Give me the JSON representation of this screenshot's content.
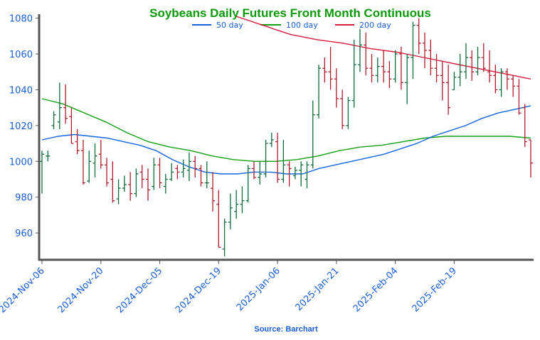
{
  "chart_data": {
    "type": "ohlc",
    "title": "Soybeans Daily Futures Front Month Continuous",
    "source": "Source: Barchart",
    "ylim": [
      945,
      1083
    ],
    "yticks": [
      960,
      980,
      1000,
      1020,
      1040,
      1060,
      1080
    ],
    "x_tick_labels": [
      "2024-Nov-06",
      "2024-Nov-20",
      "2024-Dec-05",
      "2024-Dec-19",
      "2025-Jan-06",
      "2025-Jan-21",
      "2025-Feb-04",
      "2025-Feb-19"
    ],
    "x_tick_index": [
      0,
      10,
      20,
      30,
      40,
      50,
      60,
      70
    ],
    "legend": [
      {
        "name": "50 day",
        "color": "#1565e0"
      },
      {
        "name": "100 day",
        "color": "#13a013"
      },
      {
        "name": "200 day",
        "color": "#d81b3c"
      }
    ],
    "up_color": "#0e6b3a",
    "down_color": "#b01c2e",
    "bars": [
      [
        1000,
        1006,
        982,
        1004
      ],
      [
        1003,
        1006,
        1000,
        1003
      ],
      [
        1020,
        1028,
        1018,
        1026
      ],
      [
        1022,
        1044,
        1018,
        1030
      ],
      [
        1030,
        1043,
        1021,
        1024
      ],
      [
        1025,
        1030,
        1010,
        1010
      ],
      [
        1011,
        1018,
        1004,
        1006
      ],
      [
        1006,
        1012,
        987,
        988
      ],
      [
        989,
        1006,
        988,
        1000
      ],
      [
        999,
        1010,
        991,
        1003
      ],
      [
        1004,
        1012,
        996,
        998
      ],
      [
        998,
        1002,
        986,
        988
      ],
      [
        990,
        1000,
        977,
        978
      ],
      [
        979,
        990,
        976,
        985
      ],
      [
        985,
        992,
        983,
        987
      ],
      [
        987,
        994,
        978,
        982
      ],
      [
        982,
        996,
        980,
        993
      ],
      [
        994,
        998,
        985,
        990
      ],
      [
        990,
        996,
        978,
        984
      ],
      [
        986,
        1002,
        984,
        998
      ],
      [
        998,
        1002,
        985,
        988
      ],
      [
        986,
        993,
        982,
        990
      ],
      [
        990,
        999,
        989,
        994
      ],
      [
        996,
        998,
        990,
        994
      ],
      [
        994,
        1001,
        991,
        996
      ],
      [
        995,
        1005,
        989,
        1000
      ],
      [
        1000,
        1003,
        991,
        996
      ],
      [
        996,
        998,
        986,
        988
      ],
      [
        988,
        1000,
        985,
        988
      ],
      [
        985,
        994,
        972,
        978
      ],
      [
        976,
        984,
        952,
        952
      ],
      [
        951,
        968,
        947,
        966
      ],
      [
        966,
        982,
        962,
        974
      ],
      [
        972,
        984,
        968,
        976
      ],
      [
        976,
        986,
        971,
        978
      ],
      [
        978,
        998,
        977,
        996
      ],
      [
        996,
        1000,
        990,
        991
      ],
      [
        991,
        1000,
        987,
        993
      ],
      [
        993,
        1012,
        991,
        1010
      ],
      [
        1010,
        1016,
        1008,
        1012
      ],
      [
        1011,
        1016,
        988,
        990
      ],
      [
        990,
        1012,
        988,
        998
      ],
      [
        998,
        1000,
        986,
        996
      ],
      [
        992,
        997,
        990,
        995
      ],
      [
        995,
        1000,
        986,
        998
      ],
      [
        990,
        1000,
        985,
        998
      ],
      [
        998,
        1034,
        996,
        1026
      ],
      [
        1026,
        1054,
        1024,
        1052
      ],
      [
        1052,
        1058,
        1044,
        1050
      ],
      [
        1050,
        1064,
        1040,
        1046
      ],
      [
        1046,
        1052,
        1030,
        1035
      ],
      [
        1035,
        1040,
        1018,
        1020
      ],
      [
        1020,
        1036,
        1018,
        1034
      ],
      [
        1034,
        1068,
        1030,
        1054
      ],
      [
        1054,
        1074,
        1050,
        1065
      ],
      [
        1065,
        1072,
        1048,
        1052
      ],
      [
        1052,
        1060,
        1044,
        1048
      ],
      [
        1048,
        1058,
        1044,
        1053
      ],
      [
        1053,
        1062,
        1044,
        1050
      ],
      [
        1050,
        1056,
        1041,
        1046
      ],
      [
        1046,
        1062,
        1044,
        1060
      ],
      [
        1060,
        1064,
        1040,
        1044
      ],
      [
        1044,
        1060,
        1032,
        1058
      ],
      [
        1058,
        1078,
        1046,
        1076
      ],
      [
        1076,
        1080,
        1060,
        1066
      ],
      [
        1066,
        1072,
        1052,
        1062
      ],
      [
        1062,
        1068,
        1048,
        1052
      ],
      [
        1052,
        1060,
        1044,
        1048
      ],
      [
        1048,
        1056,
        1034,
        1044
      ],
      [
        1044,
        1054,
        1026,
        1030
      ],
      [
        1040,
        1050,
        1040,
        1047
      ],
      [
        1047,
        1060,
        1042,
        1050
      ],
      [
        1050,
        1066,
        1046,
        1058
      ],
      [
        1058,
        1062,
        1045,
        1050
      ],
      [
        1050,
        1064,
        1048,
        1058
      ],
      [
        1058,
        1066,
        1050,
        1052
      ],
      [
        1050,
        1062,
        1044,
        1048
      ],
      [
        1048,
        1054,
        1038,
        1040
      ],
      [
        1040,
        1052,
        1036,
        1050
      ],
      [
        1050,
        1052,
        1040,
        1046
      ],
      [
        1046,
        1048,
        1036,
        1042
      ],
      [
        1042,
        1046,
        1026,
        1027
      ],
      [
        1030,
        1032,
        1008,
        1011
      ],
      [
        1012,
        1012,
        991,
        999
      ]
    ],
    "ma50": [
      1012,
      1014,
      1015,
      1014,
      1013,
      1011,
      1009,
      1006,
      1001,
      997,
      994,
      993,
      993,
      994,
      994,
      993,
      993,
      996,
      998,
      1000,
      1002,
      1004,
      1007,
      1010,
      1014,
      1017,
      1020,
      1024,
      1027,
      1029,
      1031
    ],
    "ma100": [
      1035,
      1032,
      1027,
      1022,
      1016,
      1011,
      1008,
      1006,
      1003,
      1001,
      1000,
      1000,
      1001,
      1003,
      1006,
      1008,
      1009,
      1011,
      1013,
      1014,
      1014,
      1014,
      1014,
      1013
    ],
    "ma200": [
      1081,
      1076,
      1071,
      1068,
      1066,
      1063,
      1061,
      1058,
      1055,
      1052,
      1049,
      1046
    ]
  }
}
